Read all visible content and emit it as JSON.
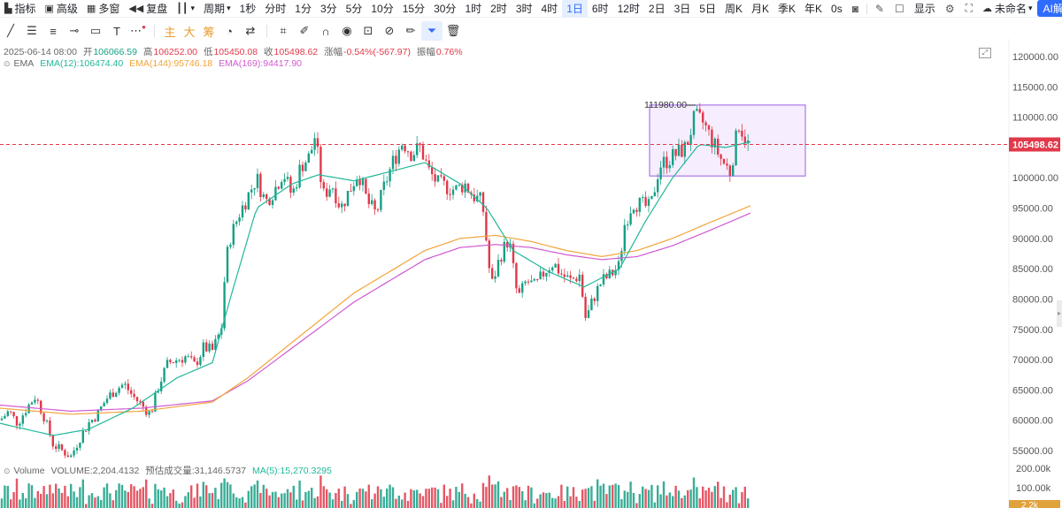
{
  "toolbar": {
    "indicators": "指标",
    "advanced": "高级",
    "multiwindow": "多窗",
    "replay": "复盘",
    "period": "周期",
    "intervals": [
      "1秒",
      "分时",
      "1分",
      "3分",
      "5分",
      "10分",
      "15分",
      "30分",
      "1时",
      "2时",
      "3时",
      "4时",
      "1日",
      "6时",
      "12时",
      "2日",
      "3日",
      "5日",
      "周K",
      "月K",
      "季K",
      "年K"
    ],
    "active_interval": "1日",
    "timer": "0s",
    "display": "显示",
    "unnamed": "未命名",
    "ai_button": "AI解读"
  },
  "drawbar": {
    "text_main": "主",
    "text_big": "大",
    "text_chip": "筹"
  },
  "ohlc": {
    "date": "2025-06-14 08:00",
    "open_label": "开",
    "open": "106066.59",
    "high_label": "高",
    "high": "106252.00",
    "low_label": "低",
    "low": "105450.08",
    "close_label": "收",
    "close": "105498.62",
    "change_label": "涨幅",
    "change": "-0.54%(-567.97)",
    "amplitude_label": "振幅",
    "amplitude": "0.76%"
  },
  "ema": {
    "label": "EMA",
    "ema12": "EMA(12):106474.40",
    "ema144": "EMA(144):95746.18",
    "ema169": "EMA(169):94417.90"
  },
  "volume": {
    "label": "Volume",
    "value": "VOLUME:2,204.4132",
    "estimate": "预估成交量:31,146.5737",
    "ma5": "MA(5):15,270.3295"
  },
  "price_axis": {
    "ticks": [
      "120000.00",
      "115000.00",
      "110000.00",
      "105000.00",
      "100000.00",
      "95000.00",
      "90000.00",
      "85000.00",
      "80000.00",
      "75000.00",
      "70000.00",
      "65000.00",
      "60000.00",
      "55000.00"
    ],
    "current_price": "105498.62"
  },
  "volume_axis": {
    "ticks": [
      "200.00k",
      "100.00k"
    ],
    "current": "2.2k"
  },
  "annotation": {
    "high_label": "111980.00"
  },
  "colors": {
    "up": "#16a085",
    "down": "#e0394a",
    "ema12": "#22b89a",
    "ema144": "#f2a53a",
    "ema169": "#d05ad0",
    "box_border": "#9b5de5",
    "box_fill": "#f3e8fd",
    "accent": "#2f6bff"
  },
  "chart_data": {
    "type": "candlestick",
    "title": "",
    "ylim": [
      52000,
      122000
    ],
    "price_ticks": [
      120000,
      115000,
      110000,
      105000,
      100000,
      95000,
      90000,
      85000,
      80000,
      75000,
      70000,
      65000,
      60000,
      55000
    ],
    "current_price": 105498.62,
    "range_box": {
      "price_high": 112000,
      "price_low": 100300
    },
    "series": [
      {
        "name": "EMA(12)",
        "value": 106474.4
      },
      {
        "name": "EMA(144)",
        "value": 95746.18
      },
      {
        "name": "EMA(169)",
        "value": 94417.9
      }
    ],
    "close_path": [
      [
        0,
        60000
      ],
      [
        10,
        61500
      ],
      [
        20,
        59500
      ],
      [
        30,
        62000
      ],
      [
        40,
        64000
      ],
      [
        50,
        60500
      ],
      [
        60,
        56000
      ],
      [
        70,
        55000
      ],
      [
        80,
        54000
      ],
      [
        90,
        57000
      ],
      [
        100,
        59500
      ],
      [
        110,
        61000
      ],
      [
        120,
        63500
      ],
      [
        130,
        65000
      ],
      [
        140,
        66000
      ],
      [
        150,
        64000
      ],
      [
        160,
        62500
      ],
      [
        170,
        61000
      ],
      [
        180,
        66000
      ],
      [
        190,
        69500
      ],
      [
        200,
        70000
      ],
      [
        210,
        70500
      ],
      [
        220,
        69000
      ],
      [
        230,
        72000
      ],
      [
        240,
        71500
      ],
      [
        250,
        75000
      ],
      [
        255,
        86000
      ],
      [
        260,
        90000
      ],
      [
        270,
        94000
      ],
      [
        280,
        97000
      ],
      [
        290,
        100000
      ],
      [
        300,
        96000
      ],
      [
        310,
        98000
      ],
      [
        320,
        101000
      ],
      [
        330,
        97000
      ],
      [
        340,
        102000
      ],
      [
        350,
        103500
      ],
      [
        356,
        107000
      ],
      [
        365,
        97000
      ],
      [
        375,
        99000
      ],
      [
        385,
        95000
      ],
      [
        395,
        98000
      ],
      [
        405,
        101000
      ],
      [
        415,
        96000
      ],
      [
        425,
        94000
      ],
      [
        435,
        99000
      ],
      [
        445,
        103000
      ],
      [
        455,
        106000
      ],
      [
        465,
        104000
      ],
      [
        475,
        105000
      ],
      [
        485,
        101000
      ],
      [
        495,
        99000
      ],
      [
        505,
        98500
      ],
      [
        515,
        98000
      ],
      [
        525,
        99000
      ],
      [
        535,
        97000
      ],
      [
        545,
        96000
      ],
      [
        555,
        82000
      ],
      [
        565,
        87000
      ],
      [
        575,
        90000
      ],
      [
        585,
        80000
      ],
      [
        595,
        83000
      ],
      [
        605,
        82000
      ],
      [
        615,
        84500
      ],
      [
        625,
        86000
      ],
      [
        635,
        84000
      ],
      [
        645,
        83000
      ],
      [
        655,
        84000
      ],
      [
        662,
        76500
      ],
      [
        670,
        80000
      ],
      [
        680,
        83000
      ],
      [
        690,
        84000
      ],
      [
        700,
        85500
      ],
      [
        705,
        92000
      ],
      [
        715,
        96000
      ],
      [
        725,
        95500
      ],
      [
        735,
        95000
      ],
      [
        745,
        102000
      ],
      [
        755,
        103000
      ],
      [
        765,
        104000
      ],
      [
        775,
        105000
      ],
      [
        785,
        110000
      ],
      [
        795,
        109000
      ],
      [
        805,
        106000
      ],
      [
        815,
        103000
      ],
      [
        825,
        101000
      ],
      [
        835,
        109000
      ],
      [
        845,
        105500
      ]
    ],
    "ema12_path": [
      [
        0,
        59500
      ],
      [
        60,
        57500
      ],
      [
        100,
        58500
      ],
      [
        150,
        62000
      ],
      [
        200,
        67000
      ],
      [
        240,
        69500
      ],
      [
        260,
        80000
      ],
      [
        290,
        95000
      ],
      [
        330,
        99000
      ],
      [
        360,
        100500
      ],
      [
        400,
        99500
      ],
      [
        440,
        101000
      ],
      [
        480,
        102500
      ],
      [
        520,
        99000
      ],
      [
        550,
        95000
      ],
      [
        580,
        88000
      ],
      [
        620,
        84500
      ],
      [
        660,
        82000
      ],
      [
        700,
        85000
      ],
      [
        730,
        93000
      ],
      [
        760,
        100000
      ],
      [
        790,
        105500
      ],
      [
        820,
        105000
      ],
      [
        850,
        106000
      ]
    ],
    "ema144_path": [
      [
        0,
        62000
      ],
      [
        80,
        61000
      ],
      [
        160,
        61500
      ],
      [
        240,
        63000
      ],
      [
        280,
        67000
      ],
      [
        340,
        74000
      ],
      [
        400,
        81000
      ],
      [
        440,
        84500
      ],
      [
        480,
        88000
      ],
      [
        520,
        90000
      ],
      [
        560,
        90500
      ],
      [
        600,
        89500
      ],
      [
        640,
        88000
      ],
      [
        680,
        87000
      ],
      [
        720,
        88000
      ],
      [
        760,
        90000
      ],
      [
        800,
        92500
      ],
      [
        850,
        95500
      ]
    ],
    "ema169_path": [
      [
        0,
        62500
      ],
      [
        80,
        61500
      ],
      [
        160,
        62000
      ],
      [
        240,
        63200
      ],
      [
        280,
        66500
      ],
      [
        340,
        73000
      ],
      [
        400,
        79500
      ],
      [
        440,
        83000
      ],
      [
        480,
        86500
      ],
      [
        520,
        88500
      ],
      [
        560,
        89000
      ],
      [
        600,
        88500
      ],
      [
        640,
        87300
      ],
      [
        680,
        86500
      ],
      [
        720,
        87000
      ],
      [
        760,
        88800
      ],
      [
        800,
        91200
      ],
      [
        850,
        94300
      ]
    ]
  }
}
